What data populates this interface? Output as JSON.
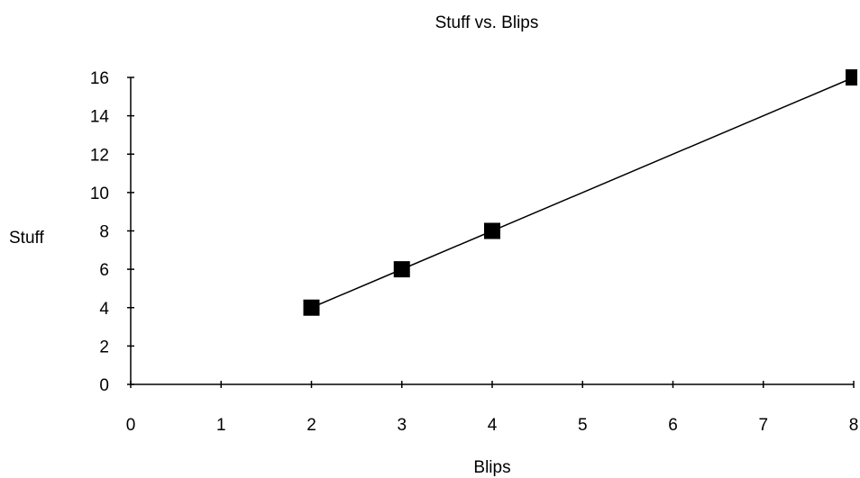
{
  "chart_data": {
    "type": "line",
    "title": "Stuff vs. Blips",
    "xlabel": "Blips",
    "ylabel": "Stuff",
    "xlim": [
      0,
      8
    ],
    "ylim": [
      0,
      16
    ],
    "x_ticks": [
      "0",
      "1",
      "2",
      "3",
      "4",
      "5",
      "6",
      "7",
      "8"
    ],
    "y_ticks": [
      "0",
      "2",
      "4",
      "6",
      "8",
      "10",
      "12",
      "14",
      "16"
    ],
    "grid": false,
    "legend": "none",
    "marker": "square",
    "series": [
      {
        "color": "#000000",
        "x": [
          2,
          3,
          4,
          8
        ],
        "y": [
          4,
          6,
          8,
          16
        ]
      }
    ]
  }
}
